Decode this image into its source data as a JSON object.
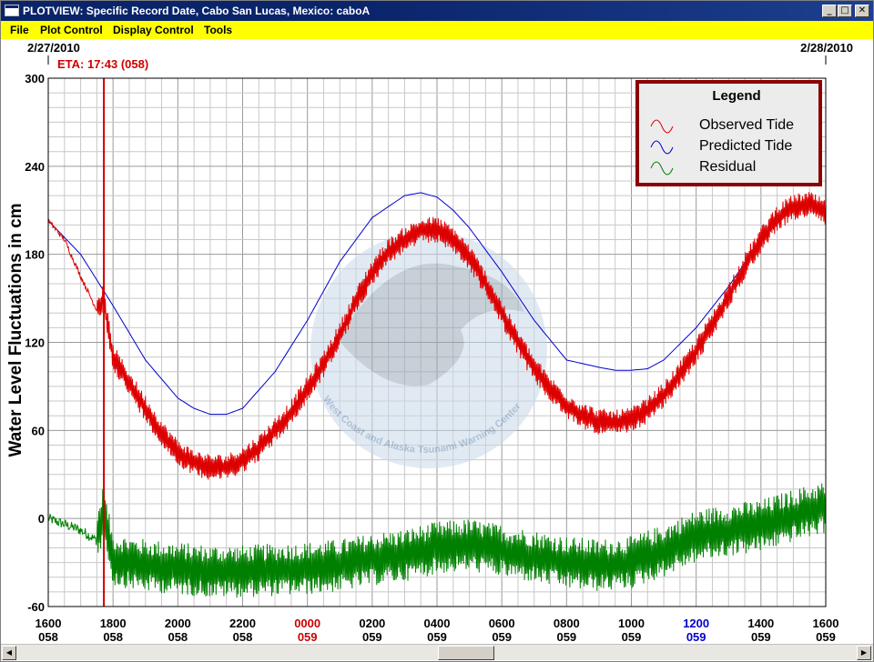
{
  "window": {
    "title": "PLOTVIEW: Specific Record Date, Cabo San Lucas, Mexico: caboA",
    "minimize_glyph": "_",
    "maximize_glyph": "□",
    "close_glyph": "✕"
  },
  "menu": {
    "items": [
      "File",
      "Plot Control",
      "Display Control",
      "Tools"
    ]
  },
  "dates": {
    "left": "2/27/2010",
    "right": "2/28/2010"
  },
  "eta": {
    "label": "ETA: 17:43 (058)",
    "time_hours": 17.717,
    "color": "#d00000"
  },
  "legend": {
    "title": "Legend",
    "border_color": "#8b0000",
    "entries": [
      {
        "label": "Observed Tide",
        "color": "#dd0000"
      },
      {
        "label": "Predicted Tide",
        "color": "#0000cc"
      },
      {
        "label": "Residual",
        "color": "#008000"
      }
    ]
  },
  "watermark": {
    "text": "West Coast and Alaska Tsunami Warning Center"
  },
  "scroll": {
    "left_glyph": "◀",
    "right_glyph": "▶"
  },
  "chart_data": {
    "type": "line",
    "ylabel": "Water Level Fluctuations in cm",
    "xlabel": "",
    "ylim": [
      -60,
      300
    ],
    "yticks": [
      -60,
      0,
      60,
      120,
      180,
      240,
      300
    ],
    "xlim_hours": [
      16,
      40
    ],
    "grid": true,
    "legend_position": "top-right",
    "x_ticks": [
      {
        "h": 16,
        "time": "1600",
        "day": "058",
        "color": "#000000"
      },
      {
        "h": 18,
        "time": "1800",
        "day": "058",
        "color": "#000000"
      },
      {
        "h": 20,
        "time": "2000",
        "day": "058",
        "color": "#000000"
      },
      {
        "h": 22,
        "time": "2200",
        "day": "058",
        "color": "#000000"
      },
      {
        "h": 24,
        "time": "0000",
        "day": "059",
        "color": "#cc0000"
      },
      {
        "h": 26,
        "time": "0200",
        "day": "059",
        "color": "#000000"
      },
      {
        "h": 28,
        "time": "0400",
        "day": "059",
        "color": "#000000"
      },
      {
        "h": 30,
        "time": "0600",
        "day": "059",
        "color": "#000000"
      },
      {
        "h": 32,
        "time": "0800",
        "day": "059",
        "color": "#000000"
      },
      {
        "h": 34,
        "time": "1000",
        "day": "059",
        "color": "#000000"
      },
      {
        "h": 36,
        "time": "1200",
        "day": "059",
        "color": "#0000cc"
      },
      {
        "h": 38,
        "time": "1400",
        "day": "059",
        "color": "#000000"
      },
      {
        "h": 40,
        "time": "1600",
        "day": "059",
        "color": "#000000"
      }
    ],
    "series": [
      {
        "name": "Predicted Tide",
        "color": "#0000cc",
        "x_hours": [
          16,
          17,
          18,
          19,
          20,
          20.5,
          21,
          21.5,
          22,
          23,
          24,
          25,
          26,
          27,
          27.5,
          28,
          28.5,
          29,
          30,
          31,
          32,
          33,
          33.5,
          34,
          34.5,
          35,
          36,
          37,
          38,
          39,
          39.5,
          40
        ],
        "values": [
          203,
          180,
          145,
          108,
          82,
          75,
          71,
          71,
          75,
          100,
          135,
          175,
          205,
          220,
          222,
          219,
          210,
          198,
          168,
          135,
          108,
          103,
          101,
          101,
          102,
          108,
          130,
          158,
          190,
          213,
          216,
          209
        ]
      },
      {
        "name": "Observed Tide",
        "color": "#dd0000",
        "x_hours": [
          16,
          16.5,
          17,
          17.5,
          17.7,
          18,
          18.5,
          19,
          19.5,
          20,
          20.5,
          21,
          21.5,
          22,
          22.5,
          23,
          23.5,
          24,
          24.5,
          25,
          25.5,
          26,
          26.5,
          27,
          27.5,
          28,
          28.5,
          29,
          29.5,
          30,
          30.5,
          31,
          31.5,
          32,
          32.5,
          33,
          33.5,
          34,
          34.5,
          35,
          35.5,
          36,
          36.5,
          37,
          37.5,
          38,
          38.5,
          39,
          39.5,
          40
        ],
        "values": [
          203,
          190,
          165,
          142,
          150,
          110,
          92,
          75,
          58,
          45,
          38,
          35,
          35,
          40,
          48,
          60,
          72,
          88,
          105,
          125,
          148,
          168,
          182,
          190,
          196,
          197,
          190,
          178,
          160,
          140,
          120,
          102,
          88,
          77,
          70,
          66,
          65,
          67,
          74,
          84,
          98,
          114,
          132,
          152,
          172,
          190,
          205,
          212,
          214,
          208
        ],
        "noise_amplitude_cm": 9
      },
      {
        "name": "Residual",
        "color": "#008000",
        "x_hours": [
          16,
          17,
          17.5,
          17.7,
          18,
          19,
          20,
          21,
          22,
          23,
          24,
          25,
          26,
          27,
          28,
          29,
          30,
          31,
          32,
          33,
          34,
          35,
          36,
          37,
          38,
          39,
          40
        ],
        "values": [
          0,
          -8,
          -15,
          5,
          -28,
          -32,
          -34,
          -36,
          -36,
          -35,
          -34,
          -32,
          -28,
          -25,
          -20,
          -18,
          -22,
          -26,
          -30,
          -32,
          -30,
          -22,
          -12,
          -8,
          -5,
          2,
          8
        ],
        "noise_amplitude_cm": 18
      }
    ]
  }
}
